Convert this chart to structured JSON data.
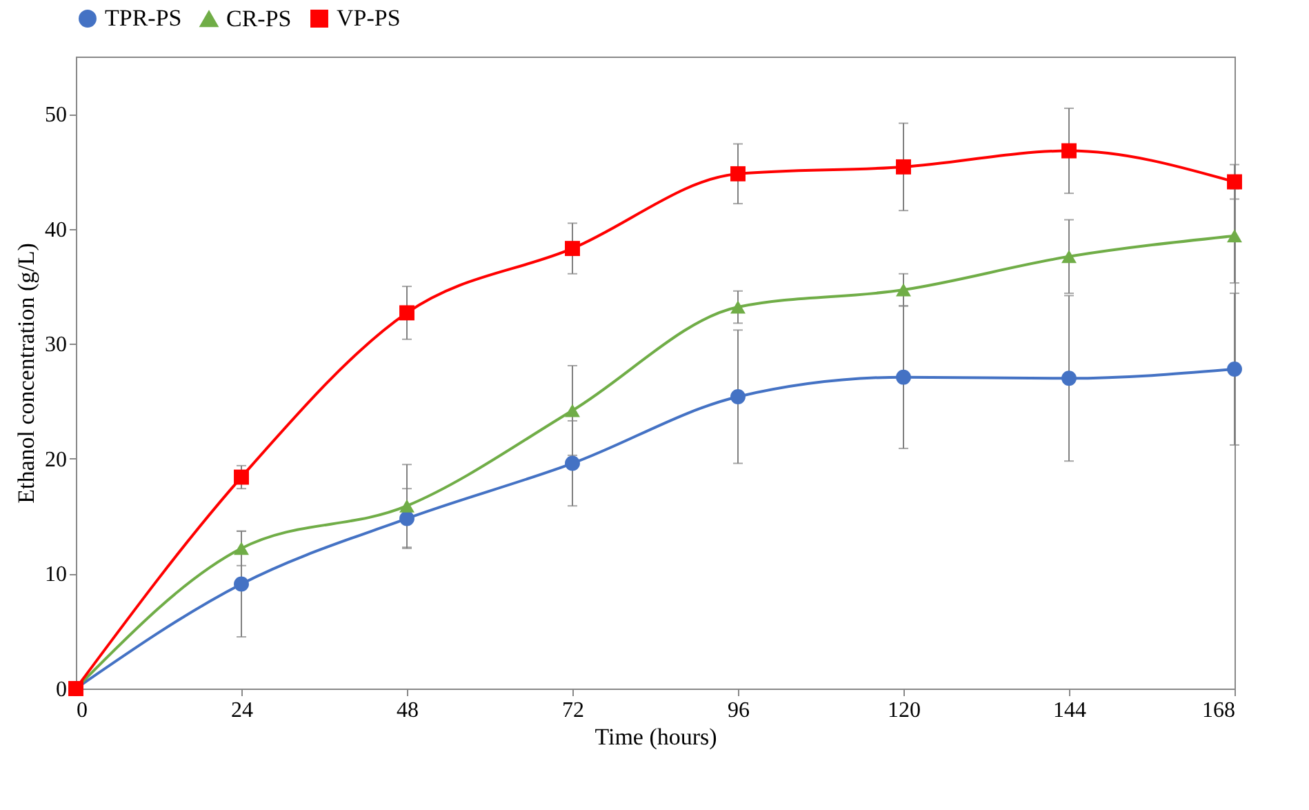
{
  "chart_data": {
    "type": "line",
    "xlabel": "Time (hours)",
    "ylabel": "Ethanol concentration (g/L)",
    "x": [
      0,
      24,
      48,
      72,
      96,
      120,
      144,
      168
    ],
    "series": [
      {
        "name": "TPR-PS",
        "color": "#4472c4",
        "marker": "circle",
        "values": [
          0,
          9.1,
          14.8,
          19.6,
          25.4,
          27.1,
          27.0,
          27.8
        ],
        "errors": [
          null,
          4.6,
          2.6,
          3.7,
          5.8,
          6.2,
          7.2,
          6.6
        ]
      },
      {
        "name": "CR-PS",
        "color": "#70ad47",
        "marker": "triangle",
        "values": [
          0,
          12.2,
          15.9,
          24.2,
          33.2,
          34.7,
          37.6,
          39.4
        ],
        "errors": [
          null,
          1.5,
          3.6,
          3.9,
          1.4,
          1.4,
          3.2,
          4.1
        ]
      },
      {
        "name": "VP-PS",
        "color": "#ff0000",
        "marker": "square",
        "values": [
          0,
          18.4,
          32.7,
          38.3,
          44.8,
          45.4,
          46.8,
          44.1
        ],
        "errors": [
          null,
          1.0,
          2.3,
          2.2,
          2.6,
          3.8,
          3.7,
          1.5
        ]
      }
    ],
    "xlim": [
      0,
      168
    ],
    "xticks": [
      0,
      24,
      48,
      72,
      96,
      120,
      144,
      168
    ],
    "ylim": [
      0,
      55
    ],
    "yticks": [
      0,
      10,
      20,
      30,
      40,
      50
    ],
    "grid": false,
    "legend": "top",
    "line_style": "solid"
  }
}
